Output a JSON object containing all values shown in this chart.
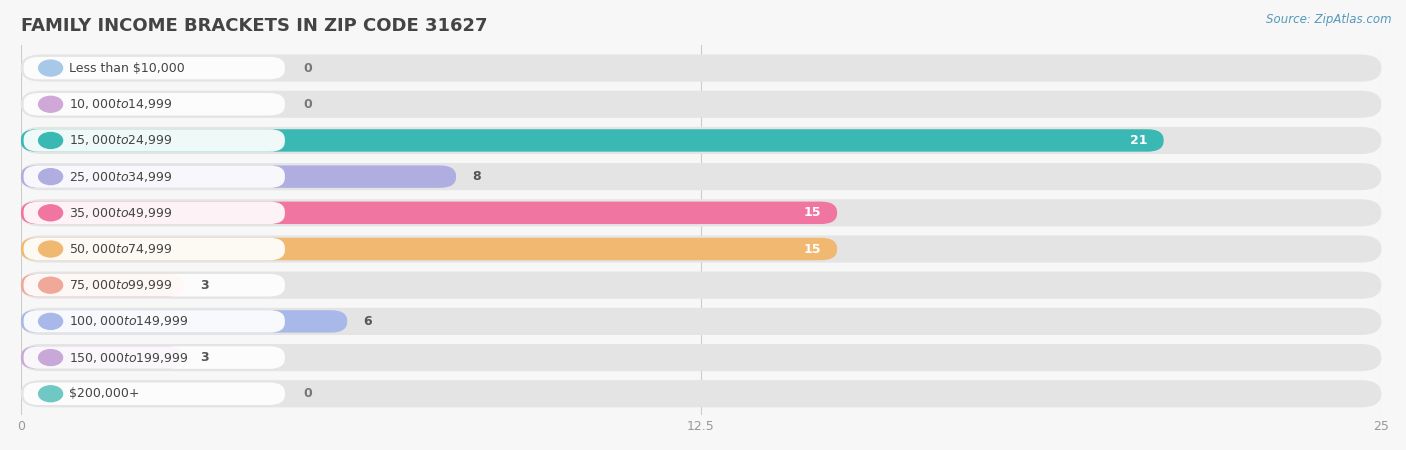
{
  "title": "Family Income Brackets in Zip Code 31627",
  "source_text": "Source: ZipAtlas.com",
  "categories": [
    "Less than $10,000",
    "$10,000 to $14,999",
    "$15,000 to $24,999",
    "$25,000 to $34,999",
    "$35,000 to $49,999",
    "$50,000 to $74,999",
    "$75,000 to $99,999",
    "$100,000 to $149,999",
    "$150,000 to $199,999",
    "$200,000+"
  ],
  "values": [
    0,
    0,
    21,
    8,
    15,
    15,
    3,
    6,
    3,
    0
  ],
  "bar_colors": [
    "#a8c8e8",
    "#d0a8d8",
    "#3ab8b4",
    "#b0aee0",
    "#f075a0",
    "#f0b870",
    "#f0a898",
    "#a8b8e8",
    "#c8a8d8",
    "#70c8c4"
  ],
  "background_color": "#f7f7f7",
  "bar_bg_color": "#e4e4e4",
  "label_bg_color": "#ffffff",
  "xlim": [
    0,
    25
  ],
  "xticks": [
    0,
    12.5,
    25
  ],
  "title_fontsize": 13,
  "label_fontsize": 9,
  "value_fontsize": 9
}
